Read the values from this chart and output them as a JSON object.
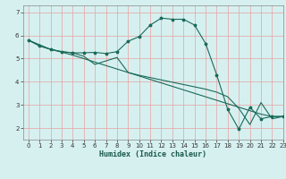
{
  "title": "",
  "xlabel": "Humidex (Indice chaleur)",
  "ylabel": "",
  "bg_color": "#d6f0f0",
  "plot_bg_color": "#d6f0f0",
  "grid_color": "#e8a0a0",
  "line_color": "#1a6b5a",
  "xlim": [
    -0.5,
    23
  ],
  "ylim": [
    1.5,
    7.3
  ],
  "yticks": [
    2,
    3,
    4,
    5,
    6,
    7
  ],
  "xticks": [
    0,
    1,
    2,
    3,
    4,
    5,
    6,
    7,
    8,
    9,
    10,
    11,
    12,
    13,
    14,
    15,
    16,
    17,
    18,
    19,
    20,
    21,
    22,
    23
  ],
  "series1_x": [
    0,
    1,
    2,
    3,
    4,
    5,
    6,
    7,
    8,
    9,
    10,
    11,
    12,
    13,
    14,
    15,
    16,
    17,
    18,
    19,
    20,
    21,
    22,
    23
  ],
  "series1_y": [
    5.8,
    5.55,
    5.4,
    5.3,
    5.25,
    5.25,
    5.27,
    5.22,
    5.3,
    5.75,
    5.95,
    6.45,
    6.75,
    6.7,
    6.7,
    6.45,
    5.65,
    4.3,
    2.8,
    1.95,
    2.9,
    2.4,
    2.5,
    2.5
  ],
  "series2_x": [
    0,
    1,
    2,
    3,
    4,
    5,
    6,
    7,
    8,
    9,
    10,
    11,
    12,
    13,
    14,
    15,
    16,
    17,
    18,
    19,
    20,
    21,
    22,
    23
  ],
  "series2_y": [
    5.8,
    5.55,
    5.4,
    5.28,
    5.15,
    5.0,
    4.85,
    4.7,
    4.55,
    4.4,
    4.25,
    4.1,
    3.95,
    3.8,
    3.65,
    3.5,
    3.35,
    3.2,
    3.05,
    2.9,
    2.75,
    2.6,
    2.5,
    2.5
  ],
  "series3_x": [
    0,
    1,
    2,
    3,
    4,
    5,
    6,
    7,
    8,
    9,
    10,
    11,
    12,
    13,
    14,
    15,
    16,
    17,
    18,
    19,
    20,
    21,
    22,
    23
  ],
  "series3_y": [
    5.8,
    5.6,
    5.4,
    5.3,
    5.25,
    5.1,
    4.75,
    4.9,
    5.05,
    4.4,
    4.28,
    4.18,
    4.08,
    3.98,
    3.88,
    3.78,
    3.68,
    3.55,
    3.35,
    2.85,
    2.15,
    3.1,
    2.4,
    2.5
  ]
}
